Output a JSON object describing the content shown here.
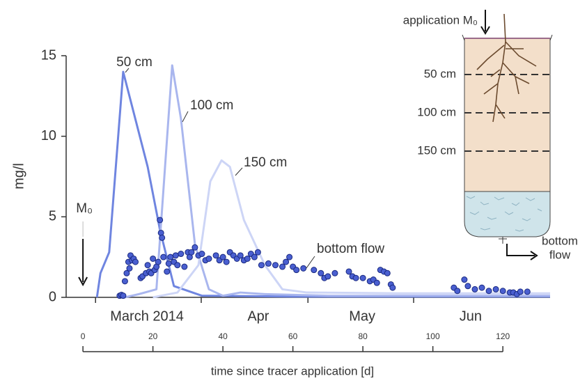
{
  "chart_data": {
    "type": "line",
    "y_label": "mg/l",
    "x_label": "time since tracer application [d]",
    "xlim": [
      -4.8,
      133.5
    ],
    "ylim": [
      0,
      15
    ],
    "yticks": [
      0,
      5,
      10,
      15
    ],
    "xticks": [
      0,
      20,
      40,
      60,
      80,
      100,
      120
    ],
    "month_boundaries": [
      3.6,
      33.8,
      64.3,
      94.5
    ],
    "month_labels": [
      {
        "value": 18.3,
        "label": "March 2014"
      },
      {
        "value": 50.1,
        "label": "Apr"
      },
      {
        "value": 79.8,
        "label": "May"
      },
      {
        "value": 110.8,
        "label": "Jun"
      }
    ],
    "application_label": "M₀",
    "application_day": 0,
    "series": [
      {
        "name": "50 cm",
        "color": "#6f85e0",
        "style": "line",
        "x": [
          4,
          5,
          7.5,
          11.5,
          18.5,
          22,
          26,
          34,
          60,
          100,
          133.5
        ],
        "values": [
          0,
          1.5,
          2.8,
          14,
          8.1,
          4.2,
          0.7,
          0.1,
          0.05,
          0.05,
          0.05
        ]
      },
      {
        "name": "100 cm",
        "color": "#a9b6ee",
        "style": "line",
        "x": [
          12,
          16,
          21,
          25.5,
          28,
          32,
          36,
          40,
          45,
          52,
          70,
          100,
          133.5
        ],
        "values": [
          0,
          0.2,
          0.5,
          14.4,
          11.1,
          3.3,
          0.5,
          0.1,
          0.3,
          0.2,
          0.1,
          0.1,
          0.1
        ]
      },
      {
        "name": "150 cm",
        "color": "#cdd5f6",
        "style": "line",
        "x": [
          20,
          27,
          33,
          36.4,
          39.6,
          42,
          46,
          52,
          57,
          64,
          90,
          133.5
        ],
        "values": [
          0,
          0.3,
          2,
          7.2,
          8.5,
          8.1,
          4.8,
          2,
          0.5,
          0.3,
          0.25,
          0.25
        ]
      },
      {
        "name": "bottom flow",
        "color": "#4a5fd0",
        "style": "scatter",
        "x": [
          10.5,
          11,
          11.5,
          12,
          12.5,
          13,
          13.3,
          13.6,
          14,
          14.5,
          15,
          16.5,
          17,
          18,
          18.5,
          19,
          19.5,
          20,
          20.5,
          21,
          21.5,
          22,
          22.3,
          22.6,
          23,
          24,
          24.5,
          25,
          26,
          26.5,
          27,
          28,
          29,
          30,
          30.5,
          31,
          32,
          33,
          34,
          35,
          36,
          38,
          39,
          40,
          41,
          42,
          43,
          44,
          45,
          46,
          47,
          48,
          49,
          50,
          51,
          53,
          55,
          57,
          58,
          59,
          60,
          61,
          63,
          66,
          68,
          69,
          70,
          72,
          76,
          77,
          78,
          80,
          82,
          83,
          84,
          85,
          86,
          87,
          88,
          88.5,
          106,
          107,
          109,
          110,
          112,
          114,
          116,
          118,
          120,
          122,
          123,
          124,
          125,
          127
        ],
        "values": [
          0.1,
          0.15,
          0.1,
          1.0,
          1.5,
          2.2,
          1.8,
          2.6,
          2.3,
          2.4,
          2.2,
          1.2,
          1.3,
          1.5,
          2.0,
          1.6,
          1.5,
          2.4,
          1.7,
          1.9,
          2.2,
          4.8,
          4.0,
          3.7,
          2.5,
          1.6,
          2.1,
          2.5,
          2.2,
          2.6,
          2.0,
          2.7,
          1.9,
          2.8,
          2.5,
          2.8,
          3.1,
          2.6,
          2.7,
          2.3,
          2.4,
          2.6,
          2.3,
          2.5,
          2.2,
          2.8,
          2.6,
          2.4,
          2.6,
          2.3,
          2.4,
          2.7,
          2.5,
          2.8,
          2.0,
          2.1,
          2.0,
          1.9,
          2.2,
          2.5,
          1.9,
          1.7,
          1.8,
          1.7,
          1.5,
          1.2,
          1.3,
          1.5,
          1.6,
          1.3,
          1.2,
          1.2,
          1.0,
          1.1,
          0.9,
          1.7,
          1.6,
          1.5,
          0.8,
          0.6,
          0.6,
          0.4,
          1.1,
          0.7,
          0.5,
          0.6,
          0.4,
          0.5,
          0.4,
          0.3,
          0.3,
          0.2,
          0.35,
          0.35
        ]
      }
    ]
  },
  "diagram": {
    "application": "application M₀",
    "depths": [
      "50 cm",
      "100 cm",
      "150 cm"
    ],
    "outlet": [
      "bottom",
      "flow"
    ]
  }
}
